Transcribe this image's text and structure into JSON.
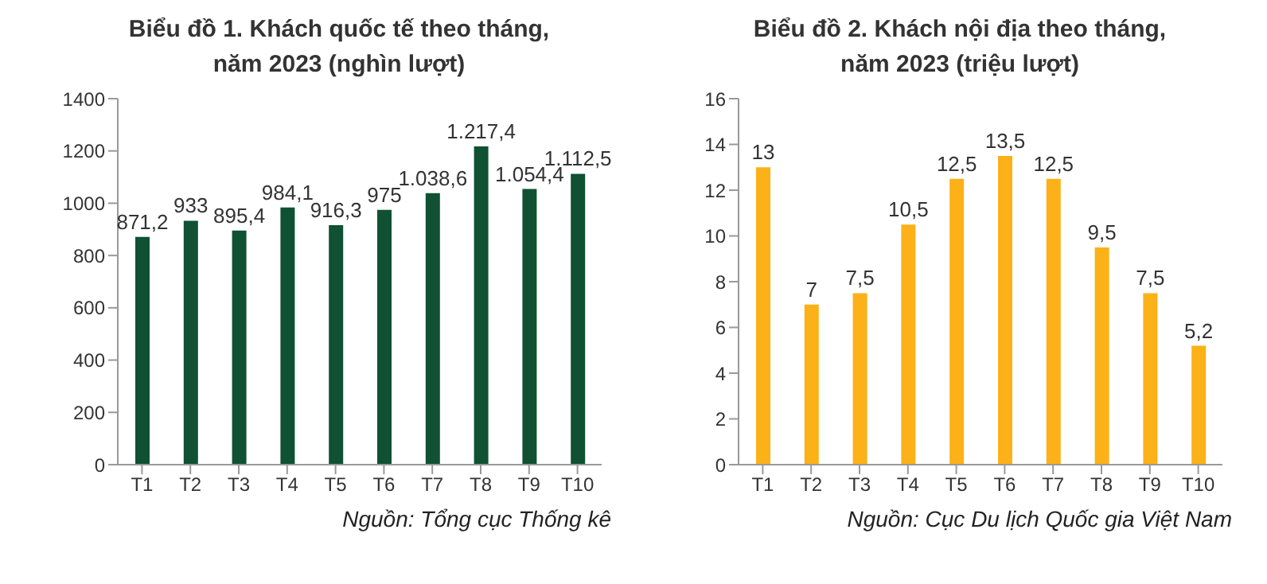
{
  "chart_data": [
    {
      "type": "bar",
      "title": "Biểu đồ 1. Khách quốc tế theo tháng, năm 2023 (nghìn lượt)",
      "categories": [
        "T1",
        "T2",
        "T3",
        "T4",
        "T5",
        "T6",
        "T7",
        "T8",
        "T9",
        "T10"
      ],
      "values": [
        871.2,
        933,
        895.4,
        984.1,
        916.3,
        975,
        1038.6,
        1217.4,
        1054.4,
        1112.5
      ],
      "value_labels": [
        "871,2",
        "933",
        "895,4",
        "984,1",
        "916,3",
        "975",
        "1.038,6",
        "1.217,4",
        "1.054,4",
        "1.112,5"
      ],
      "color": "#0f5132",
      "ylim": [
        0,
        1400
      ],
      "yticks": [
        0,
        200,
        400,
        600,
        800,
        1000,
        1200,
        1400
      ],
      "grid": false,
      "legend": false,
      "annotations": [
        "Nguồn: Tổng cục Thống kê"
      ]
    },
    {
      "type": "bar",
      "title": "Biểu đồ 2. Khách nội địa theo tháng, năm 2023 (triệu lượt)",
      "categories": [
        "T1",
        "T2",
        "T3",
        "T4",
        "T5",
        "T6",
        "T7",
        "T8",
        "T9",
        "T10"
      ],
      "values": [
        13,
        7,
        7.5,
        10.5,
        12.5,
        13.5,
        12.5,
        9.5,
        7.5,
        5.2
      ],
      "value_labels": [
        "13",
        "7",
        "7,5",
        "10,5",
        "12,5",
        "13,5",
        "12,5",
        "9,5",
        "7,5",
        "5,2"
      ],
      "color": "#fbb117",
      "ylim": [
        0,
        16
      ],
      "yticks": [
        0,
        2,
        4,
        6,
        8,
        10,
        12,
        14,
        16
      ],
      "grid": false,
      "legend": false,
      "annotations": [
        "Nguồn: Cục Du lịch Quốc gia Việt Nam"
      ]
    }
  ]
}
